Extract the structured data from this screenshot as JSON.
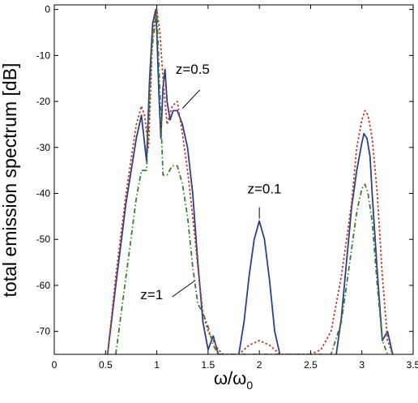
{
  "chart_data": {
    "type": "line",
    "xlabel": "ω/ω",
    "xlabel_sub": "0",
    "ylabel": "total emission spectrum [dB]",
    "xlim": [
      0,
      3.5
    ],
    "ylim": [
      -75,
      1
    ],
    "xticks": [
      "0",
      "0.5",
      "1",
      "1.5",
      "2",
      "2.5",
      "3",
      "3.5"
    ],
    "yticks": [
      "0",
      "-10",
      "-20",
      "-30",
      "-40",
      "-50",
      "-60",
      "-70"
    ],
    "grid": false,
    "legend": "none",
    "series": [
      {
        "line_style": "solid",
        "color": "#2b3f8c",
        "x": [
          0.52,
          0.6,
          0.7,
          0.8,
          0.85,
          0.88,
          0.9,
          0.93,
          0.96,
          0.99,
          1.0,
          1.02,
          1.04,
          1.06,
          1.08,
          1.1,
          1.13,
          1.16,
          1.2,
          1.25,
          1.3,
          1.35,
          1.4,
          1.45,
          1.5,
          1.55,
          1.6,
          1.65
        ],
        "y": [
          -75,
          -60,
          -42,
          -28,
          -23,
          -29,
          -33,
          -15,
          -3,
          0,
          -5,
          -18,
          -28,
          -17,
          -13,
          -20,
          -24,
          -22,
          -22,
          -25,
          -30,
          -40,
          -55,
          -68,
          -74,
          -71,
          -75,
          -75
        ],
        "x2": [
          1.8,
          1.85,
          1.9,
          1.95,
          2.0,
          2.05,
          2.1,
          2.15,
          2.2
        ],
        "y2": [
          -75,
          -68,
          -58,
          -50,
          -46,
          -50,
          -59,
          -70,
          -75
        ],
        "x3": [
          2.75,
          2.8,
          2.85,
          2.9,
          2.95,
          3.0,
          3.02,
          3.05,
          3.08,
          3.1,
          3.15,
          3.2,
          3.25,
          3.3
        ],
        "y3": [
          -75,
          -67,
          -55,
          -43,
          -35,
          -29,
          -27,
          -28,
          -32,
          -40,
          -57,
          -72,
          -70,
          -75
        ]
      },
      {
        "line_style": "dotted",
        "color": "#c0392b",
        "x": [
          0.52,
          0.6,
          0.7,
          0.8,
          0.85,
          0.88,
          0.92,
          0.96,
          1.0,
          1.03,
          1.06,
          1.1,
          1.15,
          1.2,
          1.25,
          1.3,
          1.35,
          1.4,
          1.45,
          1.5,
          1.55,
          1.6,
          1.65,
          1.7,
          1.8,
          1.9,
          2.0,
          2.1,
          2.2,
          2.3,
          2.4,
          2.5,
          2.6,
          2.7,
          2.8,
          2.9,
          2.95,
          3.0,
          3.03,
          3.06,
          3.1,
          3.15,
          3.2,
          3.25,
          3.3
        ],
        "y": [
          -75,
          -58,
          -40,
          -25,
          -21,
          -23,
          -30,
          -5,
          0,
          -5,
          -15,
          -25,
          -21,
          -20,
          -27,
          -35,
          -45,
          -56,
          -66,
          -70,
          -72,
          -74,
          -75,
          -75,
          -75,
          -73,
          -72,
          -73,
          -75,
          -75,
          -75,
          -75,
          -74,
          -70,
          -58,
          -42,
          -30,
          -24,
          -22,
          -23,
          -28,
          -40,
          -58,
          -72,
          -75
        ]
      },
      {
        "line_style": "dashdot",
        "color": "#3a7d2c",
        "x": [
          0.6,
          0.7,
          0.8,
          0.85,
          0.9,
          0.95,
          1.0,
          1.03,
          1.06,
          1.1,
          1.15,
          1.2,
          1.25,
          1.3,
          1.35,
          1.4,
          1.45,
          1.5,
          1.55,
          1.6,
          2.7,
          2.8,
          2.9,
          2.95,
          3.0,
          3.03,
          3.06,
          3.1,
          3.15,
          3.2,
          3.25
        ],
        "y": [
          -75,
          -58,
          -41,
          -35,
          -35,
          -9,
          0,
          -18,
          -36,
          -36,
          -34,
          -34,
          -38,
          -45,
          -56,
          -64,
          -66,
          -69,
          -73,
          -75,
          -75,
          -68,
          -52,
          -44,
          -39,
          -38,
          -40,
          -46,
          -60,
          -72,
          -75
        ]
      }
    ],
    "annotations": [
      {
        "text": "z=0.5",
        "x": 1.35,
        "y": -14
      },
      {
        "text": "z=0.1",
        "x": 2.05,
        "y": -40
      },
      {
        "text": "z=1",
        "x": 0.95,
        "y": -63
      }
    ]
  }
}
